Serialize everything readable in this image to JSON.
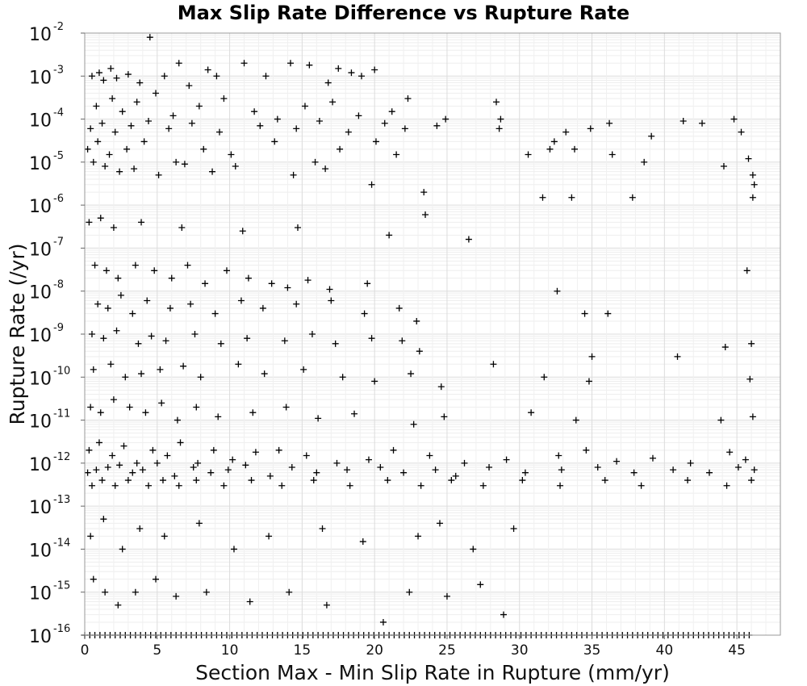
{
  "chart_data": {
    "type": "scatter",
    "title": "Max Slip Rate Difference vs Rupture Rate",
    "xlabel": "Section Max - Min Slip Rate in Rupture (mm/yr)",
    "ylabel": "Rupture Rate (/yr)",
    "xlim": [
      0,
      48
    ],
    "ylim": [
      1e-16,
      0.01
    ],
    "yscale": "log",
    "grid": true,
    "marker": "+",
    "marker_color": "#000000",
    "x_ticks": [
      "0",
      "5",
      "10",
      "15",
      "20",
      "25",
      "30",
      "35",
      "40",
      "45"
    ],
    "y_ticks": [
      {
        "base": "10",
        "exp": "-16"
      },
      {
        "base": "10",
        "exp": "-15"
      },
      {
        "base": "10",
        "exp": "-14"
      },
      {
        "base": "10",
        "exp": "-13"
      },
      {
        "base": "10",
        "exp": "-12"
      },
      {
        "base": "10",
        "exp": "-11"
      },
      {
        "base": "10",
        "exp": "-10"
      },
      {
        "base": "10",
        "exp": "-9"
      },
      {
        "base": "10",
        "exp": "-8"
      },
      {
        "base": "10",
        "exp": "-7"
      },
      {
        "base": "10",
        "exp": "-6"
      },
      {
        "base": "10",
        "exp": "-5"
      },
      {
        "base": "10",
        "exp": "-4"
      },
      {
        "base": "10",
        "exp": "-3"
      },
      {
        "base": "10",
        "exp": "-2"
      }
    ],
    "series": [
      {
        "x": [
          0.5,
          1.0,
          1.3,
          1.8,
          2.2,
          3.0,
          3.8,
          4.5,
          5.5,
          6.5,
          7.2,
          8.5,
          9.1,
          11.0,
          12.5,
          14.2,
          15.5,
          16.8,
          17.5,
          18.4,
          19.1,
          20.0,
          0.8,
          1.9,
          2.6,
          3.6,
          4.9,
          6.1,
          7.9,
          9.6,
          11.7,
          13.3,
          15.2,
          17.1,
          18.9,
          21.2,
          22.3,
          24.9,
          28.4,
          28.7,
          36.2,
          41.3,
          44.8,
          0.4,
          1.2,
          2.1,
          3.2,
          4.4,
          5.8,
          7.4,
          9.3,
          12.1,
          14.6,
          16.2,
          18.2,
          20.7,
          22.1,
          24.3,
          28.6,
          32.4,
          33.2,
          34.9,
          39.1,
          42.6,
          45.3,
          0.2,
          0.9,
          1.7,
          2.9,
          4.1,
          6.3,
          8.2,
          10.1,
          13.1,
          15.9,
          17.6,
          20.1,
          21.5,
          30.6,
          32.1,
          33.8,
          36.4,
          38.6,
          44.1,
          45.8,
          46.1,
          0.6,
          1.4,
          2.4,
          3.4,
          5.1,
          6.9,
          8.8,
          10.4,
          14.4,
          16.6,
          19.8,
          23.4,
          31.6,
          33.6,
          37.8,
          46.2,
          0.3,
          1.1,
          2.0,
          3.9,
          6.7,
          10.9,
          14.7,
          21.0,
          23.5,
          26.5,
          46.1,
          0.7,
          1.5,
          2.3,
          3.5,
          4.8,
          6.0,
          7.1,
          8.3,
          9.8,
          11.3,
          12.9,
          14.0,
          15.4,
          16.9,
          19.5,
          45.7,
          0.9,
          1.6,
          2.5,
          3.3,
          4.3,
          5.9,
          7.3,
          9.0,
          10.8,
          12.3,
          14.6,
          17.0,
          19.3,
          21.7,
          22.9,
          32.6,
          34.5,
          36.1,
          0.5,
          1.3,
          2.2,
          3.7,
          4.6,
          5.6,
          7.6,
          9.4,
          11.2,
          13.8,
          15.7,
          17.3,
          19.8,
          21.9,
          23.1,
          35.0,
          40.9,
          44.2,
          46.0,
          0.6,
          1.8,
          2.8,
          3.9,
          5.2,
          6.8,
          8.0,
          10.6,
          12.4,
          15.1,
          17.8,
          20.0,
          22.5,
          24.6,
          28.2,
          31.7,
          34.8,
          45.9,
          0.4,
          1.1,
          2.0,
          3.1,
          4.2,
          5.3,
          6.4,
          7.7,
          9.2,
          11.6,
          13.9,
          16.1,
          18.6,
          22.7,
          24.8,
          30.8,
          33.9,
          43.9,
          46.1,
          0.3,
          1.0,
          1.9,
          2.7,
          3.6,
          4.7,
          5.7,
          6.6,
          7.8,
          8.9,
          10.2,
          11.8,
          13.4,
          15.3,
          17.4,
          19.6,
          21.3,
          23.8,
          26.2,
          29.1,
          32.7,
          34.6,
          36.7,
          39.2,
          41.8,
          44.5,
          45.6,
          0.2,
          0.8,
          1.6,
          2.4,
          3.3,
          4.0,
          5.0,
          6.2,
          7.5,
          8.7,
          9.9,
          11.1,
          12.8,
          14.3,
          16.0,
          18.1,
          20.4,
          22.0,
          24.2,
          25.6,
          27.9,
          30.4,
          32.9,
          35.4,
          37.9,
          40.6,
          43.1,
          45.1,
          46.2,
          0.5,
          1.2,
          2.1,
          3.0,
          4.4,
          5.4,
          6.5,
          7.7,
          9.6,
          11.5,
          13.6,
          15.8,
          18.3,
          20.9,
          23.2,
          25.3,
          27.5,
          30.2,
          32.8,
          35.9,
          38.4,
          41.6,
          44.3,
          46.0,
          0.4,
          1.3,
          2.6,
          3.8,
          5.5,
          7.9,
          10.3,
          12.7,
          16.4,
          19.2,
          23.0,
          24.5,
          26.8,
          29.6,
          0.6,
          1.4,
          2.3,
          3.5,
          4.9,
          6.3,
          8.4,
          11.4,
          14.1,
          16.7,
          20.6,
          22.4,
          25.0,
          27.3,
          28.9
        ],
        "y": [
          0.001,
          0.0012,
          0.0008,
          0.0015,
          0.0009,
          0.0011,
          0.0007,
          0.008,
          0.001,
          0.002,
          0.0006,
          0.0014,
          0.001,
          0.002,
          0.001,
          0.002,
          0.0018,
          0.0007,
          0.0015,
          0.0012,
          0.001,
          0.0014,
          0.0002,
          0.0003,
          0.00015,
          0.00025,
          0.0004,
          0.00012,
          0.0002,
          0.0003,
          0.00015,
          0.0001,
          0.0002,
          0.00025,
          0.00012,
          0.00015,
          0.0003,
          0.0001,
          0.00025,
          0.0001,
          8e-05,
          9e-05,
          0.0001,
          6e-05,
          8e-05,
          5e-05,
          7e-05,
          9e-05,
          6e-05,
          8e-05,
          5e-05,
          7e-05,
          6e-05,
          9e-05,
          5e-05,
          8e-05,
          6e-05,
          7e-05,
          6e-05,
          3e-05,
          5e-05,
          6e-05,
          4e-05,
          8e-05,
          5e-05,
          2e-05,
          3e-05,
          1.5e-05,
          2e-05,
          3e-05,
          1e-05,
          2e-05,
          1.5e-05,
          3e-05,
          1e-05,
          2e-05,
          3e-05,
          1.5e-05,
          1.5e-05,
          2e-05,
          2e-05,
          1.5e-05,
          1e-05,
          8e-06,
          1.2e-05,
          5e-06,
          1e-05,
          8e-06,
          6e-06,
          7e-06,
          5e-06,
          9e-06,
          6e-06,
          8e-06,
          5e-06,
          7e-06,
          3e-06,
          2e-06,
          1.5e-06,
          1.5e-06,
          1.5e-06,
          3e-06,
          4e-07,
          5e-07,
          3e-07,
          4e-07,
          3e-07,
          2.5e-07,
          3e-07,
          2e-07,
          6e-07,
          1.6e-07,
          1.5e-06,
          4e-08,
          3e-08,
          2e-08,
          4e-08,
          3e-08,
          2e-08,
          4e-08,
          1.5e-08,
          3e-08,
          2e-08,
          1.5e-08,
          1.2e-08,
          1.8e-08,
          1.1e-08,
          1.5e-08,
          3e-08,
          5e-09,
          4e-09,
          8e-09,
          3e-09,
          6e-09,
          4e-09,
          5e-09,
          3e-09,
          6e-09,
          4e-09,
          5e-09,
          6e-09,
          3e-09,
          4e-09,
          2e-09,
          1e-08,
          3e-09,
          3e-09,
          1e-09,
          8e-10,
          1.2e-09,
          6e-10,
          9e-10,
          7e-10,
          1e-09,
          6e-10,
          8e-10,
          7e-10,
          1e-09,
          6e-10,
          8e-10,
          7e-10,
          4e-10,
          3e-10,
          3e-10,
          5e-10,
          6e-10,
          1.5e-10,
          2e-10,
          1e-10,
          1.2e-10,
          1.5e-10,
          1.8e-10,
          1e-10,
          2e-10,
          1.2e-10,
          1.5e-10,
          1e-10,
          8e-11,
          1.2e-10,
          6e-11,
          2e-10,
          1e-10,
          8e-11,
          9e-11,
          2e-11,
          1.5e-11,
          3e-11,
          2e-11,
          1.5e-11,
          2.5e-11,
          1e-11,
          2e-11,
          1.2e-11,
          1.5e-11,
          2e-11,
          1.1e-11,
          1.4e-11,
          8e-12,
          1.2e-11,
          1.5e-11,
          1e-11,
          1e-11,
          1.2e-11,
          2e-12,
          3e-12,
          1.5e-12,
          2.5e-12,
          1e-12,
          2e-12,
          1.5e-12,
          3e-12,
          1e-12,
          2e-12,
          1.2e-12,
          1.8e-12,
          2e-12,
          1.5e-12,
          1e-12,
          1.2e-12,
          2e-12,
          1.5e-12,
          1e-12,
          1.2e-12,
          1.5e-12,
          2e-12,
          1.1e-12,
          1.3e-12,
          1e-12,
          1.8e-12,
          1.2e-12,
          6e-13,
          7e-13,
          8e-13,
          9e-13,
          6e-13,
          7e-13,
          1e-12,
          5e-13,
          8e-13,
          6e-13,
          7e-13,
          9e-13,
          5e-13,
          8e-13,
          6e-13,
          7e-13,
          8e-13,
          6e-13,
          7e-13,
          5e-13,
          8e-13,
          6e-13,
          7e-13,
          8e-13,
          6e-13,
          7e-13,
          6e-13,
          8e-13,
          7e-13,
          3e-13,
          4e-13,
          3e-13,
          4e-13,
          3e-13,
          4e-13,
          3e-13,
          4e-13,
          3e-13,
          4e-13,
          3e-13,
          4e-13,
          3e-13,
          4e-13,
          3e-13,
          4e-13,
          3e-13,
          4e-13,
          3e-13,
          4e-13,
          3e-13,
          4e-13,
          3e-13,
          4e-13,
          2e-14,
          5e-14,
          1e-14,
          3e-14,
          2e-14,
          4e-14,
          1e-14,
          2e-14,
          3e-14,
          1.5e-14,
          2e-14,
          4e-14,
          1e-14,
          3e-14,
          2e-15,
          1e-15,
          5e-16,
          1e-15,
          2e-15,
          8e-16,
          1e-15,
          6e-16,
          1e-15,
          5e-16,
          2e-16,
          1e-15,
          8e-16,
          1.5e-15,
          3e-16
        ]
      }
    ],
    "floor_row_y": 1e-16,
    "floor_row_xlim": [
      0,
      46
    ]
  }
}
